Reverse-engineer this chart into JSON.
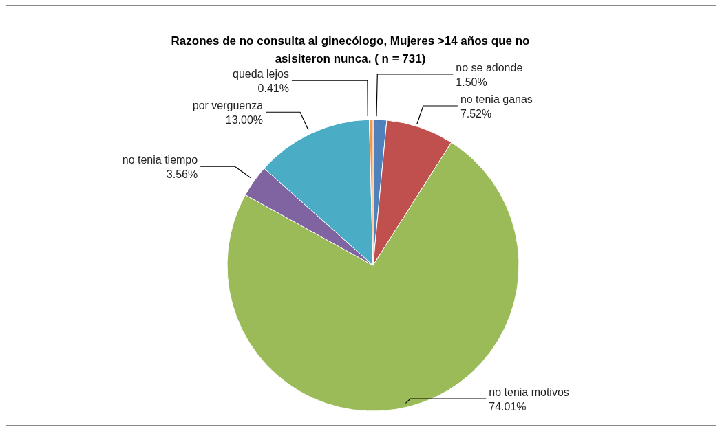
{
  "chart_data": {
    "type": "pie",
    "title": "Razones de no consulta al ginecólogo, Mujeres >14 años que no asisiteron nunca. ( n = 731)",
    "categories": [
      "no se adonde",
      "no tenia ganas",
      "no tenia motivos",
      "no tenia tiempo",
      "por verguenza",
      "queda lejos"
    ],
    "values": [
      1.5,
      7.52,
      74.01,
      3.56,
      13.0,
      0.41
    ],
    "value_labels": [
      "1.50%",
      "7.52%",
      "74.01%",
      "3.56%",
      "13.00%",
      "0.41%"
    ],
    "colors": [
      "#4f81bd",
      "#c0504d",
      "#9bbb59",
      "#8064a2",
      "#4bacc6",
      "#f79646"
    ],
    "legend": false
  }
}
